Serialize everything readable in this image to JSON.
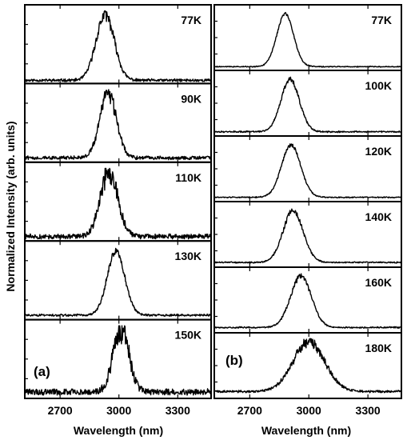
{
  "figure": {
    "ylabel": "Normalized Intensity (arb. units)",
    "xlabel": "Wavelength (nm)"
  },
  "chart_data": [
    {
      "type": "line",
      "panel_label": "(a)",
      "xlabel": "Wavelength (nm)",
      "ylabel": "Normalized Intensity (arb. units)",
      "xlim": [
        2520,
        3470
      ],
      "ylim": [
        0,
        1.08
      ],
      "xticks": [
        2700,
        3000,
        3300
      ],
      "xtick_labels": [
        "2700",
        "3000",
        "3300"
      ],
      "spectra": [
        {
          "temperature": "77K",
          "peak_nm": 2930,
          "fwhm_nm": 110,
          "noise": 0.08,
          "baseline": 0.0
        },
        {
          "temperature": "90K",
          "peak_nm": 2945,
          "fwhm_nm": 100,
          "noise": 0.1,
          "baseline": 0.02
        },
        {
          "temperature": "110K",
          "peak_nm": 2950,
          "fwhm_nm": 105,
          "noise": 0.14,
          "baseline": 0.02
        },
        {
          "temperature": "130K",
          "peak_nm": 2985,
          "fwhm_nm": 105,
          "noise": 0.05,
          "baseline": 0.02
        },
        {
          "temperature": "150K",
          "peak_nm": 3010,
          "fwhm_nm": 95,
          "noise": 0.18,
          "baseline": 0.05
        }
      ]
    },
    {
      "type": "line",
      "panel_label": "(b)",
      "xlabel": "Wavelength (nm)",
      "ylabel": "",
      "xlim": [
        2520,
        3470
      ],
      "ylim": [
        0,
        1.08
      ],
      "xticks": [
        2700,
        3000,
        3300
      ],
      "xtick_labels": [
        "2700",
        "3000",
        "3300"
      ],
      "spectra": [
        {
          "temperature": "77K",
          "peak_nm": 2880,
          "fwhm_nm": 100,
          "noise": 0.02,
          "baseline": 0.01
        },
        {
          "temperature": "100K",
          "peak_nm": 2905,
          "fwhm_nm": 110,
          "noise": 0.04,
          "baseline": 0.02
        },
        {
          "temperature": "120K",
          "peak_nm": 2910,
          "fwhm_nm": 115,
          "noise": 0.03,
          "baseline": 0.02
        },
        {
          "temperature": "140K",
          "peak_nm": 2920,
          "fwhm_nm": 120,
          "noise": 0.04,
          "baseline": 0.03
        },
        {
          "temperature": "160K",
          "peak_nm": 2960,
          "fwhm_nm": 125,
          "noise": 0.04,
          "baseline": 0.04
        },
        {
          "temperature": "180K",
          "peak_nm": 3000,
          "fwhm_nm": 190,
          "noise": 0.08,
          "baseline": 0.07
        }
      ]
    }
  ]
}
